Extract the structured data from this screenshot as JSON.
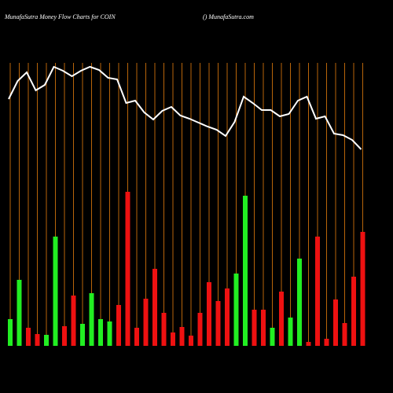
{
  "chart_data": {
    "type": "money-flow",
    "title": "MunafaSutra  Money Flow  Charts for COIN",
    "subtitle": "() MunafaSutra.com",
    "grid_color": "#b8650a",
    "line": {
      "color": "#ffffff",
      "values": [
        314,
        337,
        348,
        325,
        332,
        355,
        350,
        343,
        350,
        355,
        351,
        341,
        339,
        309,
        312,
        297,
        288,
        299,
        304,
        293,
        289,
        284,
        279,
        275,
        267,
        285,
        317,
        309,
        300,
        300,
        292,
        295,
        312,
        317,
        289,
        292,
        270,
        268,
        262,
        250
      ]
    },
    "bars": {
      "values": [
        34,
        84,
        23,
        15,
        14,
        139,
        25,
        64,
        28,
        67,
        34,
        31,
        52,
        196,
        23,
        60,
        98,
        42,
        17,
        24,
        13,
        42,
        81,
        57,
        73,
        92,
        191,
        46,
        46,
        23,
        69,
        36,
        111,
        5,
        139,
        9,
        59,
        29,
        88,
        145
      ],
      "colors": [
        "#22ee22",
        "#22ee22",
        "#ee1111",
        "#ee1111",
        "#22ee22",
        "#22ee22",
        "#ee1111",
        "#ee1111",
        "#22ee22",
        "#22ee22",
        "#22ee22",
        "#22ee22",
        "#ee1111",
        "#ee1111",
        "#ee1111",
        "#ee1111",
        "#ee1111",
        "#ee1111",
        "#ee1111",
        "#ee1111",
        "#ee1111",
        "#ee1111",
        "#ee1111",
        "#ee1111",
        "#ee1111",
        "#22ee22",
        "#22ee22",
        "#ee1111",
        "#ee1111",
        "#22ee22",
        "#ee1111",
        "#22ee22",
        "#22ee22",
        "#ee1111",
        "#ee1111",
        "#ee1111",
        "#ee1111",
        "#ee1111",
        "#ee1111",
        "#ee1111"
      ]
    }
  }
}
